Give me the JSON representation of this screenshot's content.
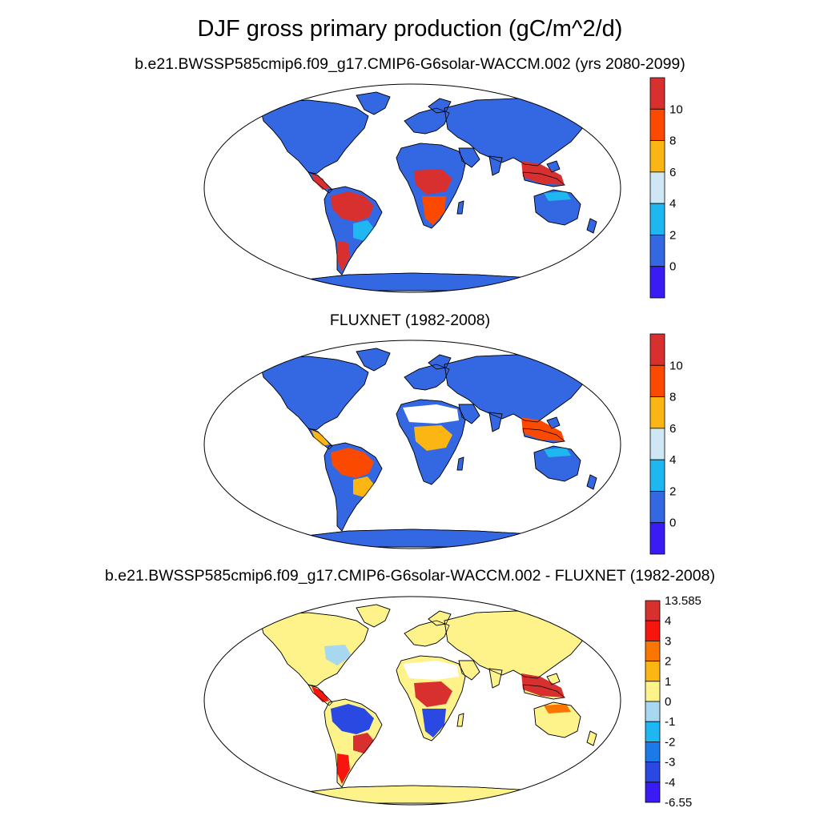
{
  "title": "DJF gross primary production (gC/m^2/d)",
  "panels": [
    {
      "subtitle": "b.e21.BWSSP585cmip6.f09_g17.CMIP6-G6solar-WACCM.002 (yrs 2080-2099)",
      "colorbar": {
        "labels": [
          "10",
          "8",
          "6",
          "4",
          "2",
          "0"
        ],
        "colors": [
          "#d7302f",
          "#fb4a00",
          "#fbb614",
          "#cfe7f5",
          "#1fb7f2",
          "#3468e3",
          "#3a1bf4"
        ]
      },
      "regions": {
        "amazon": "#d7302f",
        "brazil_south": "#1fb7f2",
        "central_america": "#d7302f",
        "congo": "#d7302f",
        "africa_south": "#fb4a00",
        "southeast_asia": "#d7302f",
        "australia": "#3468e3",
        "australia_north": "#1fb7f2",
        "land": "#3468e3",
        "patagonia": "#d7302f"
      }
    },
    {
      "subtitle": "FLUXNET (1982-2008)",
      "colorbar": {
        "labels": [
          "10",
          "8",
          "6",
          "4",
          "2",
          "0"
        ],
        "colors": [
          "#d7302f",
          "#fb4a00",
          "#fbb614",
          "#cfe7f5",
          "#1fb7f2",
          "#3468e3",
          "#3a1bf4"
        ]
      },
      "regions": {
        "amazon": "#fb4a00",
        "brazil_south": "#fbb614",
        "central_america": "#fbb614",
        "congo": "#fbb614",
        "africa_south": "#3468e3",
        "southeast_asia": "#fb4a00",
        "australia": "#3468e3",
        "australia_north": "#1fb7f2",
        "land": "#3468e3",
        "patagonia": "#3468e3",
        "sahara": "#ffffff"
      }
    },
    {
      "subtitle": "b.e21.BWSSP585cmip6.f09_g17.CMIP6-G6solar-WACCM.002 - FLUXNET (1982-2008)",
      "colorbar": {
        "labels": [
          "13.585",
          "4",
          "3",
          "2",
          "1",
          "0",
          "-1",
          "-2",
          "-3",
          "-4",
          "-6.55"
        ],
        "colors": [
          "#d7302f",
          "#f7150f",
          "#fb7600",
          "#fbb614",
          "#fef28a",
          "#a8d7f0",
          "#1fb7f2",
          "#1c7ae8",
          "#2a48e2",
          "#3a1bf4"
        ]
      },
      "regions": {
        "amazon": "#2a48e2",
        "brazil_south": "#d7302f",
        "central_america": "#f7150f",
        "congo": "#d7302f",
        "africa_south": "#2a48e2",
        "southeast_asia": "#d7302f",
        "australia": "#fef28a",
        "australia_north": "#fb7600",
        "land": "#fef28a",
        "patagonia": "#f7150f",
        "sahara": "#ffffff",
        "north_america_east": "#a8d7f0"
      }
    }
  ]
}
